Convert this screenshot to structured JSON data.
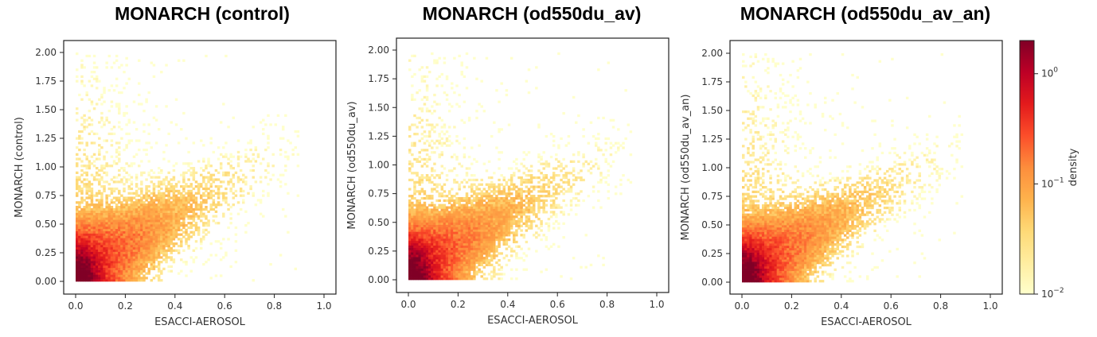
{
  "chart_data": [
    {
      "type": "heatmap",
      "title": "MONARCH (control)",
      "xlabel": "ESACCI-AEROSOL",
      "ylabel": "MONARCH (control)",
      "xlim": [
        0,
        1.0
      ],
      "ylim": [
        0,
        2.0
      ],
      "xticks": [
        "0.0",
        "0.2",
        "0.4",
        "0.6",
        "0.8",
        "1.0"
      ],
      "yticks": [
        "0.00",
        "0.25",
        "0.50",
        "0.75",
        "1.00",
        "1.25",
        "1.50",
        "1.75",
        "2.00"
      ],
      "spread": 1.08
    },
    {
      "type": "heatmap",
      "title": "MONARCH (od550du_av)",
      "xlabel": "ESACCI-AEROSOL",
      "ylabel": "MONARCH (od550du_av)",
      "xlim": [
        0,
        1.0
      ],
      "ylim": [
        0,
        2.0
      ],
      "xticks": [
        "0.0",
        "0.2",
        "0.4",
        "0.6",
        "0.8",
        "1.0"
      ],
      "yticks": [
        "0.00",
        "0.25",
        "0.50",
        "0.75",
        "1.00",
        "1.25",
        "1.50",
        "1.75",
        "2.00"
      ],
      "spread": 1.0
    },
    {
      "type": "heatmap",
      "title": "MONARCH (od550du_av_an)",
      "xlabel": "ESACCI-AEROSOL",
      "ylabel": "MONARCH (od550du_av_an)",
      "xlim": [
        0,
        1.0
      ],
      "ylim": [
        0,
        2.0
      ],
      "xticks": [
        "0.0",
        "0.2",
        "0.4",
        "0.6",
        "0.8",
        "1.0"
      ],
      "yticks": [
        "0.00",
        "0.25",
        "0.50",
        "0.75",
        "1.00",
        "1.25",
        "1.50",
        "1.75",
        "2.00"
      ],
      "spread": 0.95
    }
  ],
  "colorbar": {
    "label": "density",
    "scale": "log",
    "range": [
      0.01,
      2.0
    ],
    "ticks": [
      {
        "base": "10",
        "exp": "0",
        "value": 1.0
      },
      {
        "base": "10",
        "exp": "−1",
        "value": 0.1
      },
      {
        "base": "10",
        "exp": "−2",
        "value": 0.01
      }
    ],
    "colormap": "YlOrRd",
    "colors": [
      "#ffffcc",
      "#ffeda0",
      "#fed976",
      "#feb24c",
      "#fd8d3c",
      "#fc4e2a",
      "#e31a1c",
      "#bd0026",
      "#800026"
    ]
  }
}
